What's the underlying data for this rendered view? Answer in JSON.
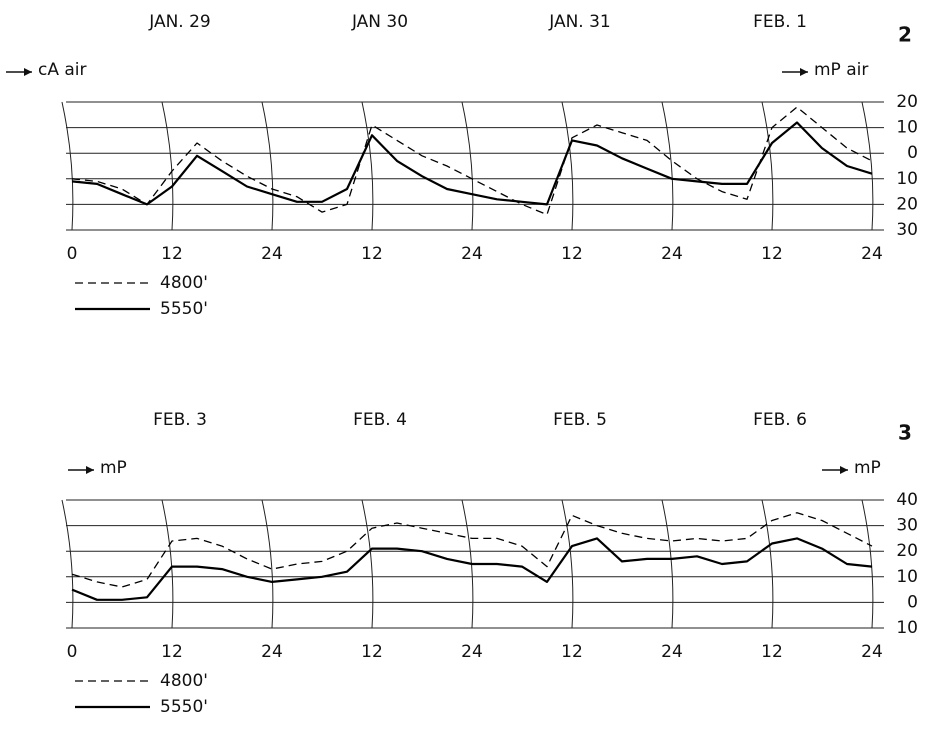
{
  "chart_data": [
    {
      "type": "line",
      "panel_label": "2",
      "day_labels": [
        "JAN. 29",
        "JAN 30",
        "JAN. 31",
        "FEB. 1"
      ],
      "annotations": [
        "cA air",
        "mP air"
      ],
      "x": [
        0,
        3,
        6,
        9,
        12,
        15,
        18,
        21,
        24,
        27,
        30,
        33,
        36,
        39,
        42,
        45,
        48,
        51,
        54,
        57,
        60,
        63,
        66,
        69,
        72,
        75,
        78,
        81,
        84,
        87,
        90,
        93,
        96
      ],
      "xlim": [
        0,
        96
      ],
      "xticks": [
        0,
        12,
        24,
        {
          "value": 36,
          "label": "12"
        },
        {
          "value": 48,
          "label": "24"
        },
        {
          "value": 60,
          "label": "12"
        },
        {
          "value": 72,
          "label": "24"
        },
        {
          "value": 84,
          "label": "12"
        },
        {
          "value": 96,
          "label": "24"
        }
      ],
      "ylim": [
        -30,
        20
      ],
      "yticks": [
        20,
        10,
        0,
        {
          "value": -10,
          "label": "10"
        },
        {
          "value": -20,
          "label": "20"
        },
        {
          "value": -30,
          "label": "30"
        }
      ],
      "grid": true,
      "series": [
        {
          "name": "4800'",
          "color": "#000000",
          "style": "dashed",
          "values": [
            -10,
            -11,
            -14,
            -20,
            -7,
            4,
            -3,
            -9,
            -14,
            -17,
            -23,
            -20,
            11,
            5,
            -1,
            -5,
            -10,
            -15,
            -20,
            -24,
            6,
            11,
            8,
            5,
            -3,
            -10,
            -15,
            -18,
            10,
            18,
            10,
            2,
            -3
          ]
        },
        {
          "name": "5550'",
          "color": "#000000",
          "style": "solid",
          "values": [
            -11,
            -12,
            -16,
            -20,
            -13,
            -1,
            -7,
            -13,
            -16,
            -19,
            -19,
            -14,
            7,
            -3,
            -9,
            -14,
            -16,
            -18,
            -19,
            -20,
            5,
            3,
            -2,
            -6,
            -10,
            -11,
            -12,
            -12,
            4,
            12,
            2,
            -5,
            -8
          ]
        }
      ]
    },
    {
      "type": "line",
      "panel_label": "3",
      "day_labels": [
        "FEB. 3",
        "FEB. 4",
        "FEB. 5",
        "FEB. 6"
      ],
      "annotations": [
        "mP",
        "mP"
      ],
      "x": [
        0,
        3,
        6,
        9,
        12,
        15,
        18,
        21,
        24,
        27,
        30,
        33,
        36,
        39,
        42,
        45,
        48,
        51,
        54,
        57,
        60,
        63,
        66,
        69,
        72,
        75,
        78,
        81,
        84,
        87,
        90,
        93,
        96
      ],
      "xlim": [
        0,
        96
      ],
      "xticks": [
        0,
        12,
        24,
        {
          "value": 36,
          "label": "12"
        },
        {
          "value": 48,
          "label": "24"
        },
        {
          "value": 60,
          "label": "12"
        },
        {
          "value": 72,
          "label": "24"
        },
        {
          "value": 84,
          "label": "12"
        },
        {
          "value": 96,
          "label": "24"
        }
      ],
      "ylim": [
        -10,
        40
      ],
      "yticks": [
        40,
        30,
        20,
        10,
        0,
        {
          "value": -10,
          "label": "10"
        }
      ],
      "grid": true,
      "series": [
        {
          "name": "4800'",
          "color": "#000000",
          "style": "dashed",
          "values": [
            11,
            8,
            6,
            9,
            24,
            25,
            22,
            17,
            13,
            15,
            16,
            20,
            29,
            31,
            29,
            27,
            25,
            25,
            22,
            14,
            34,
            30,
            27,
            25,
            24,
            25,
            24,
            25,
            32,
            35,
            32,
            27,
            22
          ]
        },
        {
          "name": "5550'",
          "color": "#000000",
          "style": "solid",
          "values": [
            5,
            1,
            1,
            2,
            14,
            14,
            13,
            10,
            8,
            9,
            10,
            12,
            21,
            21,
            20,
            17,
            15,
            15,
            14,
            8,
            22,
            25,
            16,
            17,
            17,
            18,
            15,
            16,
            23,
            25,
            21,
            15,
            14
          ]
        }
      ]
    }
  ]
}
